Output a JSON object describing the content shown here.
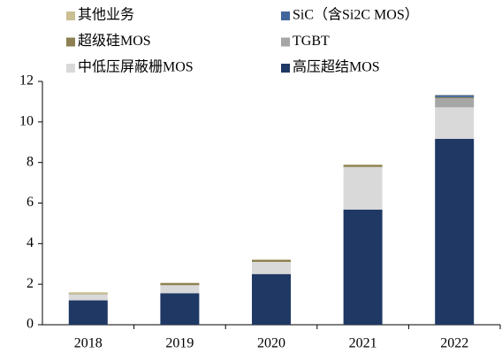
{
  "chart_data": {
    "type": "stacked_bar",
    "categories": [
      "2018",
      "2019",
      "2020",
      "2021",
      "2022"
    ],
    "series": [
      {
        "name": "其他业务",
        "color": "#c9bf93",
        "values": [
          0.08,
          0.02,
          0.02,
          0.02,
          0.02
        ]
      },
      {
        "name": "SiC（含Si2C MOS）",
        "color": "#41679c",
        "values": [
          0,
          0,
          0,
          0,
          0.1
        ]
      },
      {
        "name": "超级硅MOS",
        "color": "#8c8052",
        "values": [
          0.02,
          0.1,
          0.1,
          0.1,
          0.05
        ]
      },
      {
        "name": "TGBT",
        "color": "#a6a6a6",
        "values": [
          0,
          0,
          0,
          0,
          0.45
        ]
      },
      {
        "name": "中低压屏蔽栅MOS",
        "color": "#d9d9d9",
        "values": [
          0.3,
          0.4,
          0.6,
          2.1,
          1.55
        ]
      },
      {
        "name": "高压超结MOS",
        "color": "#1f3864",
        "values": [
          1.2,
          1.55,
          2.5,
          5.68,
          9.17
        ]
      }
    ],
    "ylim": [
      0,
      12
    ],
    "yticks": [
      0,
      2,
      4,
      6,
      8,
      10,
      12
    ]
  }
}
